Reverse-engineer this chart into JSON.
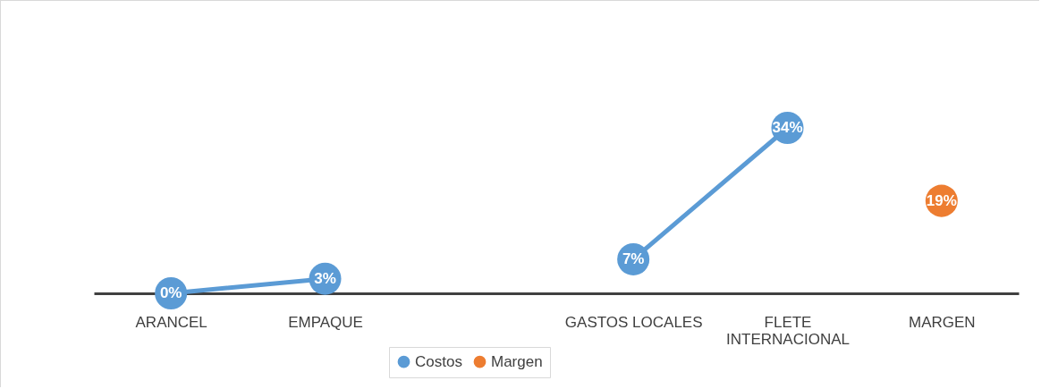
{
  "chart_data": {
    "type": "line",
    "categories": [
      "ARANCEL",
      "EMPAQUE",
      null,
      "GASTOS LOCALES",
      "FLETE INTERNACIONAL",
      "MARGEN"
    ],
    "marker": "circle",
    "legend": "bottom",
    "grid": false,
    "series": [
      {
        "name": "Costos",
        "color": "#5b9bd5",
        "values": [
          0,
          3,
          null,
          7,
          34,
          null
        ],
        "value_labels": [
          "0%",
          "3%",
          null,
          "7%",
          "34%",
          null
        ]
      },
      {
        "name": "Margen",
        "color": "#ed7d31",
        "values": [
          null,
          null,
          null,
          null,
          null,
          19
        ],
        "value_labels": [
          null,
          null,
          null,
          null,
          null,
          "19%"
        ]
      }
    ]
  }
}
